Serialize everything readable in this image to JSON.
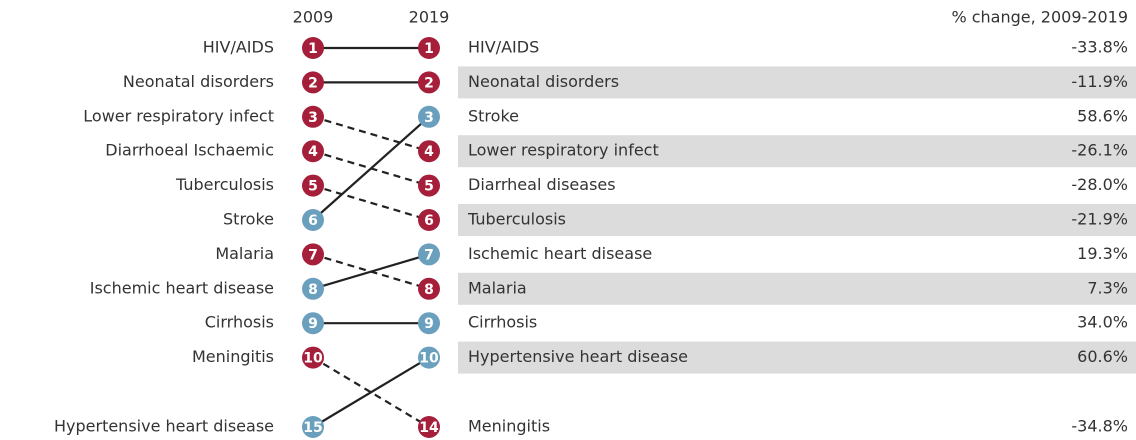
{
  "header": {
    "left_year": "2009",
    "right_year": "2019",
    "change_title": "% change, 2009-2019"
  },
  "left": [
    {
      "label": "HIV/AIDS",
      "rank": "1",
      "color": "#a51f3a"
    },
    {
      "label": "Neonatal disorders",
      "rank": "2",
      "color": "#a51f3a"
    },
    {
      "label": "Lower respiratory infect",
      "rank": "3",
      "color": "#a51f3a"
    },
    {
      "label": "Diarrhoeal Ischaemic",
      "rank": "4",
      "color": "#a51f3a"
    },
    {
      "label": "Tuberculosis",
      "rank": "5",
      "color": "#a51f3a"
    },
    {
      "label": "Stroke",
      "rank": "6",
      "color": "#6a9fbe"
    },
    {
      "label": "Malaria",
      "rank": "7",
      "color": "#a51f3a"
    },
    {
      "label": "Ischemic heart disease",
      "rank": "8",
      "color": "#6a9fbe"
    },
    {
      "label": "Cirrhosis",
      "rank": "9",
      "color": "#6a9fbe"
    },
    {
      "label": "Meningitis",
      "rank": "10",
      "color": "#a51f3a"
    },
    {
      "label": "Hypertensive heart disease",
      "rank": "15",
      "color": "#6a9fbe"
    }
  ],
  "right": [
    {
      "rank": "1",
      "label": "HIV/AIDS",
      "change": "-33.8%",
      "color": "#a51f3a"
    },
    {
      "rank": "2",
      "label": "Neonatal disorders",
      "change": "-11.9%",
      "color": "#a51f3a"
    },
    {
      "rank": "3",
      "label": "Stroke",
      "change": "58.6%",
      "color": "#6a9fbe"
    },
    {
      "rank": "4",
      "label": "Lower respiratory infect",
      "change": "-26.1%",
      "color": "#a51f3a"
    },
    {
      "rank": "5",
      "label": "Diarrheal diseases",
      "change": "-28.0%",
      "color": "#a51f3a"
    },
    {
      "rank": "6",
      "label": "Tuberculosis",
      "change": "-21.9%",
      "color": "#a51f3a"
    },
    {
      "rank": "7",
      "label": "Ischemic heart disease",
      "change": "19.3%",
      "color": "#6a9fbe"
    },
    {
      "rank": "8",
      "label": "Malaria",
      "change": "7.3%",
      "color": "#a51f3a"
    },
    {
      "rank": "9",
      "label": "Cirrhosis",
      "change": "34.0%",
      "color": "#6a9fbe"
    },
    {
      "rank": "10",
      "label": "Hypertensive heart disease",
      "change": "60.6%",
      "color": "#6a9fbe"
    },
    {
      "rank": "14",
      "label": "Meningitis",
      "change": "-34.8%",
      "color": "#a51f3a"
    }
  ],
  "links": [
    {
      "from": 0,
      "to": 0,
      "style": "solid"
    },
    {
      "from": 1,
      "to": 1,
      "style": "solid"
    },
    {
      "from": 2,
      "to": 3,
      "style": "dashed"
    },
    {
      "from": 3,
      "to": 4,
      "style": "dashed"
    },
    {
      "from": 4,
      "to": 5,
      "style": "dashed"
    },
    {
      "from": 5,
      "to": 2,
      "style": "solid"
    },
    {
      "from": 6,
      "to": 7,
      "style": "dashed"
    },
    {
      "from": 7,
      "to": 6,
      "style": "solid"
    },
    {
      "from": 8,
      "to": 8,
      "style": "solid"
    },
    {
      "from": 9,
      "to": 10,
      "style": "dashed"
    },
    {
      "from": 10,
      "to": 9,
      "style": "solid"
    }
  ]
}
